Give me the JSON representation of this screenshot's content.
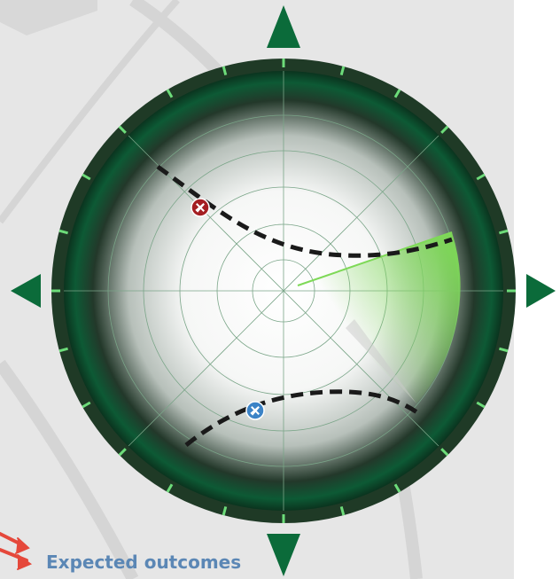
{
  "colors": {
    "background": "#e6e6e6",
    "bezel": "#1f3a26",
    "bezel_tick": "#6ddc7a",
    "arrow": "#0b6b3a",
    "sweep": "#7ed957",
    "flight_path": "#1a1a1a",
    "aircraft_outbound": "#a41e22",
    "aircraft_inbound": "#3b83c6",
    "label": "#5b87b5",
    "decor_arrow": "#e5483b"
  },
  "icons": {
    "north": "triangle-up-icon",
    "south": "triangle-down-icon",
    "east": "triangle-right-icon",
    "west": "triangle-left-icon",
    "aircraft": "airplane-icon",
    "decor": "red-arrows-icon"
  },
  "labels": {
    "expected_outcomes": "Expected outcomes"
  }
}
